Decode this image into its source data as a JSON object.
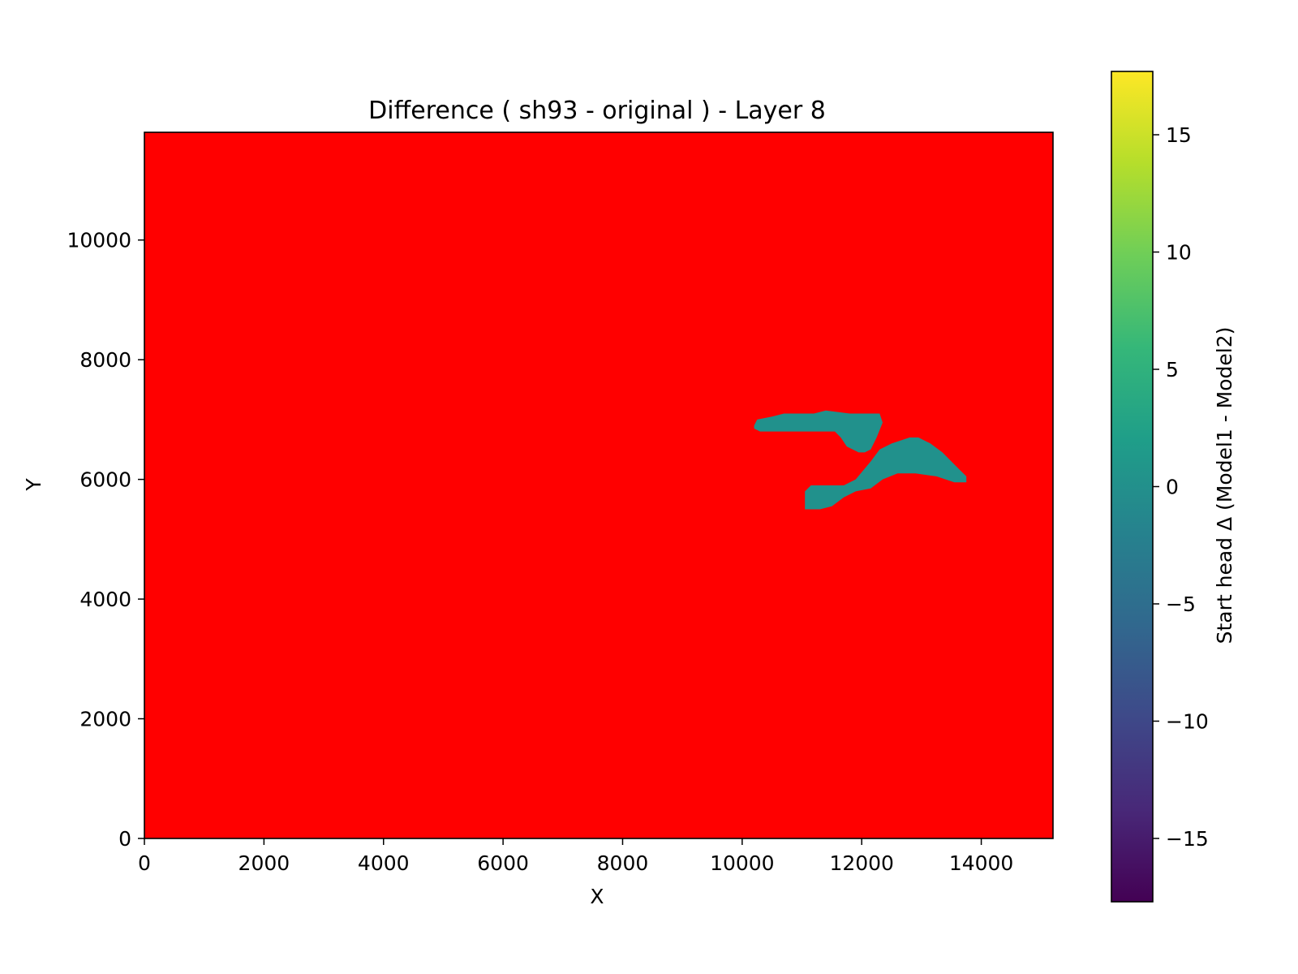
{
  "chart_data": {
    "type": "heatmap",
    "title": "Difference ( sh93 - original ) - Layer 8",
    "xlabel": "X",
    "ylabel": "Y",
    "xlim": [
      0,
      15200
    ],
    "ylim": [
      0,
      11800
    ],
    "xticks": [
      0,
      2000,
      4000,
      6000,
      8000,
      10000,
      12000,
      14000
    ],
    "yticks": [
      0,
      2000,
      4000,
      6000,
      8000,
      10000
    ],
    "background_value_color": "#ff0000",
    "region_value": 0,
    "region_color": "#21918c",
    "regions": [
      {
        "name": "upper-lobe",
        "polygon": [
          [
            10200,
            6900
          ],
          [
            10250,
            7000
          ],
          [
            10500,
            7050
          ],
          [
            10700,
            7100
          ],
          [
            11200,
            7100
          ],
          [
            11400,
            7150
          ],
          [
            11800,
            7100
          ],
          [
            12000,
            7100
          ],
          [
            12300,
            7100
          ],
          [
            12350,
            6950
          ],
          [
            12250,
            6700
          ],
          [
            12150,
            6500
          ],
          [
            12050,
            6450
          ],
          [
            11950,
            6450
          ],
          [
            11750,
            6550
          ],
          [
            11650,
            6700
          ],
          [
            11550,
            6800
          ],
          [
            11100,
            6800
          ],
          [
            10300,
            6800
          ],
          [
            10200,
            6850
          ]
        ]
      },
      {
        "name": "lower-lobe",
        "polygon": [
          [
            11050,
            5500
          ],
          [
            11050,
            5800
          ],
          [
            11150,
            5900
          ],
          [
            11700,
            5900
          ],
          [
            11900,
            6000
          ],
          [
            12150,
            6300
          ],
          [
            12300,
            6500
          ],
          [
            12500,
            6600
          ],
          [
            12800,
            6700
          ],
          [
            12950,
            6700
          ],
          [
            13150,
            6600
          ],
          [
            13350,
            6450
          ],
          [
            13500,
            6300
          ],
          [
            13650,
            6150
          ],
          [
            13750,
            6050
          ],
          [
            13750,
            5950
          ],
          [
            13550,
            5950
          ],
          [
            13250,
            6050
          ],
          [
            12900,
            6100
          ],
          [
            12600,
            6100
          ],
          [
            12350,
            6000
          ],
          [
            12150,
            5850
          ],
          [
            11900,
            5800
          ],
          [
            11700,
            5700
          ],
          [
            11500,
            5550
          ],
          [
            11300,
            5500
          ]
        ]
      }
    ],
    "colorbar": {
      "label": "Start head Δ (Model1 - Model2)",
      "range": [
        -17.7,
        17.7
      ],
      "ticks": [
        15,
        10,
        5,
        0,
        -5,
        -10,
        -15
      ],
      "tick_labels": [
        "15",
        "10",
        "5",
        "0",
        "−5",
        "−10",
        "−15"
      ],
      "colormap": "viridis",
      "stops": [
        "#440154",
        "#482878",
        "#3e4989",
        "#31688e",
        "#26828e",
        "#1f9e89",
        "#35b779",
        "#6ece58",
        "#b5de2b",
        "#fde725"
      ]
    }
  }
}
